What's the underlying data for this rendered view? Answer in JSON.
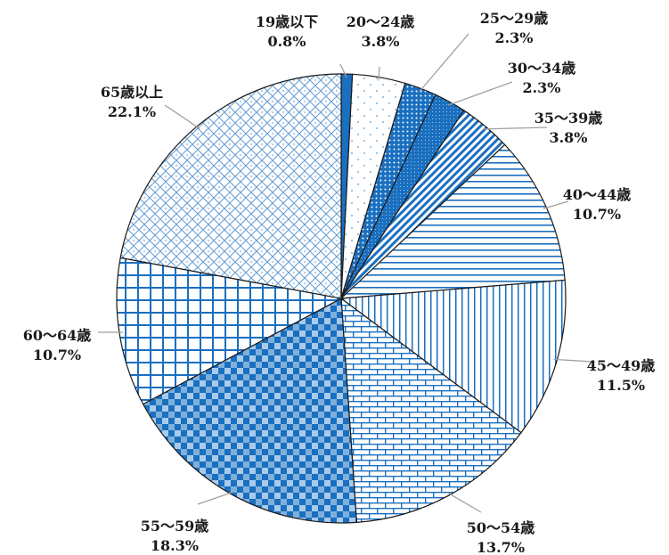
{
  "chart_data": {
    "type": "pie",
    "title": "",
    "legend": "none",
    "slices": [
      {
        "label": "19歳以下",
        "value": 0.8,
        "value_label": "0.8%",
        "color": "#1a6fbf",
        "pattern": "solid"
      },
      {
        "label": "20～24歳",
        "value": 3.8,
        "value_label": "3.8%",
        "color": "#7fb0dc",
        "pattern": "sparse-dots"
      },
      {
        "label": "25～29歳",
        "value": 2.3,
        "value_label": "2.3%",
        "color": "#1a6fbf",
        "pattern": "dense-dots"
      },
      {
        "label": "30～34歳",
        "value": 2.3,
        "value_label": "2.3%",
        "color": "#1a6fbf",
        "pattern": "fine-dots"
      },
      {
        "label": "35～39歳",
        "value": 3.8,
        "value_label": "3.8%",
        "color": "#1a6fbf",
        "pattern": "diagonal-stripes"
      },
      {
        "label": "40～44歳",
        "value": 10.7,
        "value_label": "10.7%",
        "color": "#1a6fbf",
        "pattern": "horizontal-lines"
      },
      {
        "label": "45～49歳",
        "value": 11.5,
        "value_label": "11.5%",
        "color": "#1a6fbf",
        "pattern": "vertical-lines"
      },
      {
        "label": "50～54歳",
        "value": 13.7,
        "value_label": "13.7%",
        "color": "#1a6fbf",
        "pattern": "brick"
      },
      {
        "label": "55～59歳",
        "value": 18.3,
        "value_label": "18.3%",
        "color": "#1a6fbf",
        "pattern": "checker"
      },
      {
        "label": "60～64歳",
        "value": 10.7,
        "value_label": "10.7%",
        "color": "#1a6fbf",
        "pattern": "grid"
      },
      {
        "label": "65歳以上",
        "value": 22.1,
        "value_label": "22.1%",
        "color": "#1a6fbf",
        "pattern": "diamond-lattice"
      }
    ]
  }
}
